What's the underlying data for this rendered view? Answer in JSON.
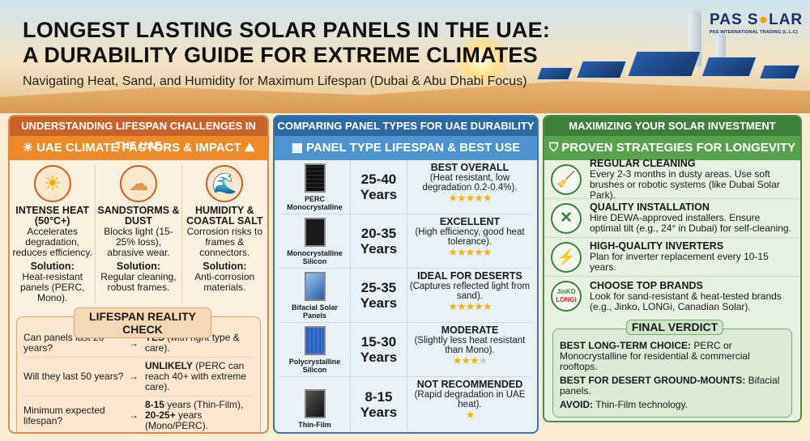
{
  "header": {
    "title_line1": "LONGEST LASTING SOLAR PANELS IN THE UAE:",
    "title_line2": "A DURABILITY GUIDE FOR EXTREME CLIMATES",
    "subtitle": "Navigating Heat, Sand, and Humidity for Maximum Lifespan (Dubai & Abu Dhabi Focus)",
    "logo": {
      "brand": "PAS SOLAR",
      "tagline": "PAS INTERNATIONAL TRADING (L.L.C)"
    }
  },
  "colors": {
    "orange": "#ef8a2a",
    "blue": "#4c93d0",
    "green": "#58a24f",
    "star": "#f4b400"
  },
  "left": {
    "title": "UNDERSTANDING LIFESPAN CHALLENGES IN THE UAE",
    "subtitle": "UAE CLIMATE FACTORS & IMPACT",
    "factors": [
      {
        "icon": "sun-icon",
        "name": "INTENSE HEAT (50°C+)",
        "desc": "Accelerates degradation, reduces efficiency.",
        "solution_label": "Solution:",
        "solution": "Heat-resistant panels (PERC, Mono)."
      },
      {
        "icon": "sandstorm-icon",
        "name": "SANDSTORMS & DUST",
        "desc": "Blocks light (15-25% loss), abrasive wear.",
        "solution_label": "Solution:",
        "solution": "Regular cleaning, robust frames."
      },
      {
        "icon": "wave-icon",
        "name": "HUMIDITY & COASTAL SALT",
        "desc": "Corrosion risks to frames & connectors.",
        "solution_label": "Solution:",
        "solution": "Anti-corrosion materials."
      }
    ],
    "check": {
      "title": "LIFESPAN REALITY CHECK",
      "rows": [
        {
          "q": "Can panels last 20 years?",
          "a_bold": "YES",
          "a": " (with right type & care)."
        },
        {
          "q": "Will they last 50 years?",
          "a_bold": "UNLIKELY",
          "a": " (PERC can reach 40+ with extreme care)."
        },
        {
          "q": "Minimum expected lifespan?",
          "a_bold": "8-15",
          "a": " years (Thin-Film),",
          "a_bold2": "20-25+",
          "a2": " years (Mono/PERC)."
        }
      ]
    }
  },
  "middle": {
    "title": "COMPARING PANEL TYPES FOR UAE DURABILITY",
    "subtitle": "PANEL TYPE LIFESPAN & BEST USE",
    "rows": [
      {
        "name": "PERC Monocrystalline",
        "years": "25-40",
        "unit": "Years",
        "verdict": "BEST OVERALL",
        "detail": "(Heat resistant, low degradation 0.2-0.4%).",
        "stars": 5,
        "stars_max": 5
      },
      {
        "name": "Monocrystalline Silicon",
        "years": "20-35",
        "unit": "Years",
        "verdict": "EXCELLENT",
        "detail": "(High efficiency, good heat tolerance).",
        "stars": 5,
        "stars_max": 5
      },
      {
        "name": "Bifacial Solar Panels",
        "years": "25-35",
        "unit": "Years",
        "verdict": "IDEAL FOR DESERTS",
        "detail": "(Captures reflected light from sand).",
        "stars": 5,
        "stars_max": 5
      },
      {
        "name": "Polycrystalline Silicon",
        "years": "15-30",
        "unit": "Years",
        "verdict": "MODERATE",
        "detail": "(Slightly less heat resistant than Mono).",
        "stars": 3,
        "stars_max": 4
      },
      {
        "name": "Thin-Film",
        "years": "8-15",
        "unit": "Years",
        "verdict": "NOT RECOMMENDED",
        "detail": "(Rapid degradation in UAE heat).",
        "stars": 1,
        "stars_max": 1
      }
    ]
  },
  "right": {
    "title": "MAXIMIZING YOUR SOLAR INVESTMENT",
    "subtitle": "PROVEN STRATEGIES FOR LONGEVITY",
    "strategies": [
      {
        "icon": "broom-icon",
        "title": "REGULAR CLEANING",
        "text": "Every 2-3 months in dusty areas. Use soft brushes or robotic systems (like Dubai Solar Park)."
      },
      {
        "icon": "tools-icon",
        "title": "QUALITY INSTALLATION",
        "text": "Hire DEWA-approved installers. Ensure optimal tilt (e.g., 24° in Dubai) for self-cleaning."
      },
      {
        "icon": "inverter-icon",
        "title": "HIGH-QUALITY INVERTERS",
        "text": "Plan for inverter replacement every 10-15 years."
      },
      {
        "icon": "brand-logos-icon",
        "title": "CHOOSE TOP BRANDS",
        "text": "Look for sand-resistant & heat-tested brands (e.g., Jinko, LONGi, Canadian Solar).",
        "logo_text": [
          "JinKO",
          "LONGi"
        ]
      }
    ],
    "verdict": {
      "title": "FINAL VERDICT",
      "items": [
        {
          "label": "BEST LONG-TERM CHOICE:",
          "text": " PERC or Monocrystalline for residential & commercial rooftops."
        },
        {
          "label": "BEST FOR DESERT GROUND-MOUNTS:",
          "text": " Bifacial panels."
        },
        {
          "label": "AVOID:",
          "text": " Thin-Film technology."
        }
      ]
    }
  }
}
